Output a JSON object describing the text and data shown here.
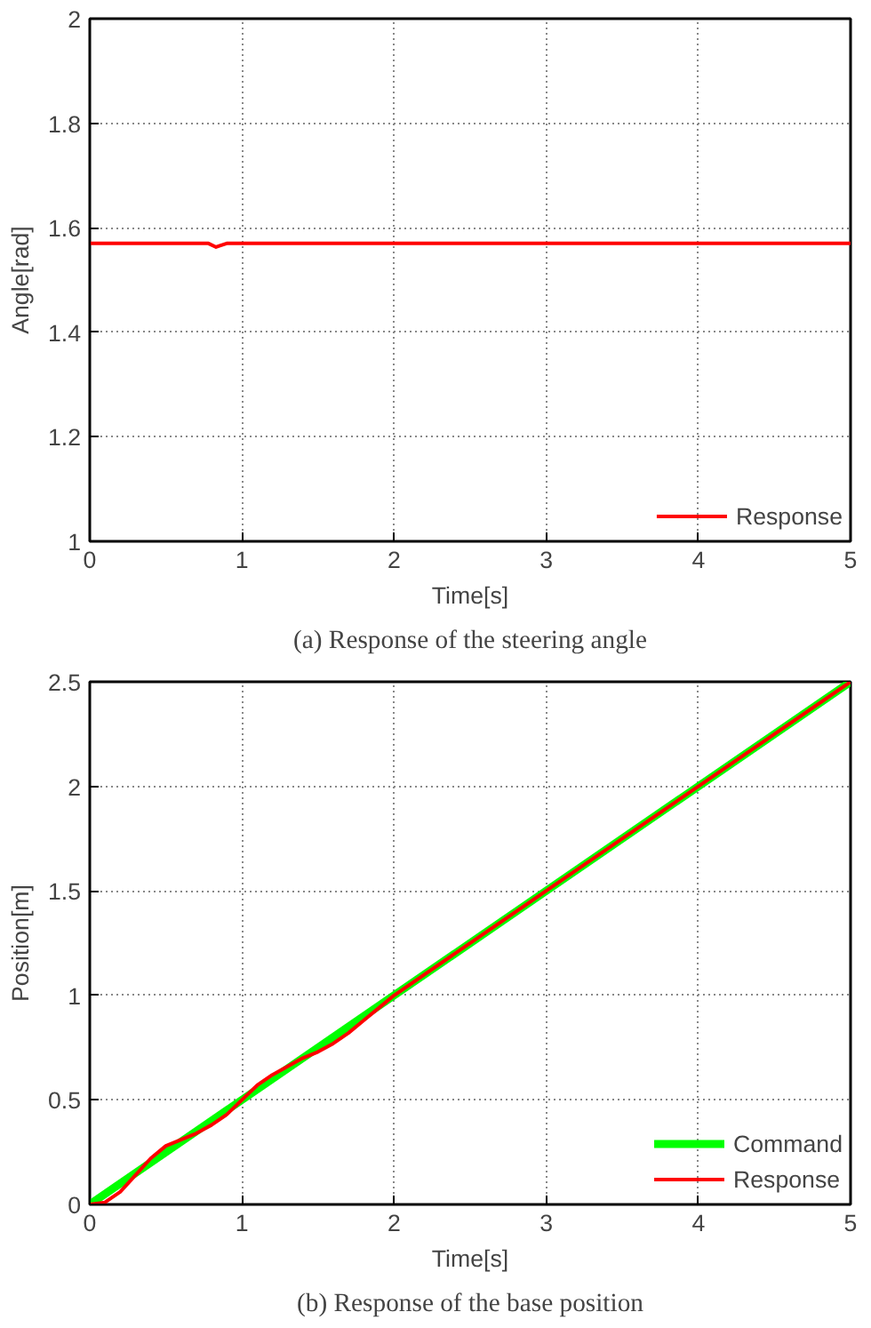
{
  "chart_data": [
    {
      "type": "line",
      "title": "(a) Response of the steering angle",
      "xlabel": "Time[s]",
      "ylabel": "Angle[rad]",
      "xlim": [
        0,
        5
      ],
      "ylim": [
        1,
        2
      ],
      "xticks": [
        0,
        1,
        2,
        3,
        4,
        5
      ],
      "yticks": [
        1,
        1.2,
        1.4,
        1.6,
        1.8,
        2
      ],
      "grid": true,
      "legend": "bottom right",
      "series": [
        {
          "name": "Response",
          "color": "#ff0000",
          "x": [
            0,
            0.5,
            0.78,
            0.83,
            0.86,
            0.9,
            1,
            2,
            3,
            4,
            5
          ],
          "values": [
            1.57,
            1.57,
            1.57,
            1.563,
            1.566,
            1.57,
            1.57,
            1.57,
            1.57,
            1.57,
            1.57
          ]
        }
      ]
    },
    {
      "type": "line",
      "title": "(b) Response of the base position",
      "xlabel": "Time[s]",
      "ylabel": "Position[m]",
      "xlim": [
        0,
        5
      ],
      "ylim": [
        0,
        2.5
      ],
      "xticks": [
        0,
        1,
        2,
        3,
        4,
        5
      ],
      "yticks": [
        0,
        0.5,
        1,
        1.5,
        2,
        2.5
      ],
      "grid": true,
      "legend": "bottom right",
      "series": [
        {
          "name": "Command",
          "color": "#00ff00",
          "x": [
            0,
            5
          ],
          "values": [
            0,
            2.5
          ]
        },
        {
          "name": "Response",
          "color": "#ff0000",
          "x": [
            0,
            0.1,
            0.2,
            0.3,
            0.4,
            0.5,
            0.6,
            0.7,
            0.8,
            0.9,
            1.0,
            1.1,
            1.2,
            1.3,
            1.4,
            1.5,
            1.6,
            1.7,
            1.8,
            1.9,
            2.0,
            3,
            4,
            5
          ],
          "values": [
            0,
            0.01,
            0.06,
            0.14,
            0.22,
            0.28,
            0.31,
            0.34,
            0.38,
            0.43,
            0.5,
            0.57,
            0.62,
            0.66,
            0.7,
            0.73,
            0.77,
            0.82,
            0.88,
            0.94,
            1.0,
            1.5,
            2.0,
            2.5
          ]
        }
      ]
    }
  ]
}
